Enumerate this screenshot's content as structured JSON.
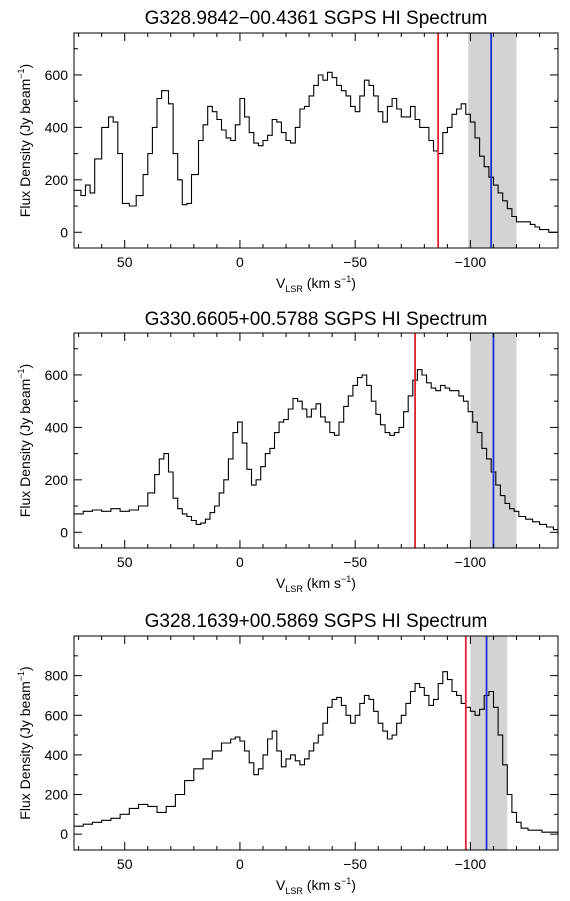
{
  "chart_data": [
    {
      "type": "line",
      "title": "G328.9842−00.4361 SGPS HI Spectrum",
      "xlabel": {
        "main": "V",
        "sub": "LSR",
        "units": " (km s",
        "exp": "−1",
        "close": ")"
      },
      "ylabel": {
        "main": "Flux Density (Jy beam",
        "exp": "−1",
        "close": ")"
      },
      "xlim": [
        72,
        -138
      ],
      "ylim": [
        -60,
        760
      ],
      "xticks": [
        50,
        0,
        -50,
        -100
      ],
      "xtick_labels": [
        "50",
        "0",
        "−50",
        "−100"
      ],
      "yticks": [
        0,
        200,
        400,
        600
      ],
      "ytick_labels": [
        "0",
        "200",
        "400",
        "600"
      ],
      "red_line_x": -86,
      "blue_line_x": -109,
      "shaded_range": [
        -99,
        -120
      ],
      "series": [
        {
          "x": [
            72,
            69,
            67,
            65,
            63,
            60,
            57,
            55,
            53,
            51,
            48,
            45,
            42,
            40,
            38,
            36,
            34,
            31,
            29,
            27,
            25,
            23,
            21,
            18,
            16,
            14,
            12,
            10,
            8,
            6,
            4,
            2,
            0,
            -2,
            -4,
            -6,
            -8,
            -10,
            -12,
            -14,
            -16,
            -18,
            -20,
            -22,
            -24,
            -26,
            -28,
            -30,
            -32,
            -34,
            -36,
            -38,
            -40,
            -42,
            -44,
            -46,
            -48,
            -50,
            -52,
            -54,
            -56,
            -58,
            -60,
            -62,
            -64,
            -66,
            -68,
            -70,
            -72,
            -74,
            -76,
            -78,
            -80,
            -82,
            -84,
            -86,
            -88,
            -90,
            -92,
            -94,
            -96,
            -98,
            -100,
            -102,
            -104,
            -106,
            -108,
            -110,
            -112,
            -114,
            -116,
            -118,
            -120,
            -122,
            -124,
            -126,
            -128,
            -130,
            -132,
            -134,
            -136,
            -138
          ],
          "y": [
            160,
            140,
            180,
            150,
            280,
            400,
            440,
            420,
            300,
            110,
            100,
            140,
            220,
            300,
            400,
            510,
            540,
            490,
            300,
            200,
            105,
            110,
            220,
            350,
            410,
            480,
            460,
            430,
            390,
            360,
            350,
            410,
            510,
            440,
            380,
            340,
            330,
            350,
            370,
            430,
            420,
            380,
            350,
            340,
            400,
            470,
            480,
            520,
            560,
            600,
            580,
            610,
            590,
            560,
            540,
            520,
            480,
            460,
            520,
            580,
            560,
            520,
            460,
            420,
            480,
            510,
            470,
            440,
            440,
            480,
            430,
            400,
            400,
            350,
            310,
            300,
            380,
            400,
            450,
            470,
            490,
            450,
            420,
            360,
            290,
            250,
            210,
            180,
            150,
            120,
            90,
            60,
            40,
            40,
            40,
            30,
            20,
            10,
            10,
            0,
            0,
            0
          ]
        }
      ]
    },
    {
      "type": "line",
      "title": "G330.6605+00.5788 SGPS HI Spectrum",
      "xlabel": {
        "main": "V",
        "sub": "LSR",
        "units": " (km s",
        "exp": "−1",
        "close": ")"
      },
      "ylabel": {
        "main": "Flux Density (Jy beam",
        "exp": "−1",
        "close": ")"
      },
      "xlim": [
        72,
        -138
      ],
      "ylim": [
        -60,
        760
      ],
      "xticks": [
        50,
        0,
        -50,
        -100
      ],
      "xtick_labels": [
        "50",
        "0",
        "−50",
        "−100"
      ],
      "yticks": [
        0,
        200,
        400,
        600
      ],
      "ytick_labels": [
        "0",
        "200",
        "400",
        "600"
      ],
      "red_line_x": -76,
      "blue_line_x": -110,
      "shaded_range": [
        -100,
        -120
      ],
      "series": [
        {
          "x": [
            72,
            68,
            64,
            60,
            56,
            52,
            48,
            44,
            40,
            37,
            35,
            33,
            31,
            29,
            27,
            25,
            23,
            21,
            19,
            17,
            15,
            13,
            11,
            9,
            7,
            5,
            3,
            1,
            -1,
            -3,
            -5,
            -7,
            -9,
            -11,
            -13,
            -15,
            -17,
            -19,
            -21,
            -23,
            -25,
            -27,
            -29,
            -31,
            -33,
            -35,
            -37,
            -39,
            -41,
            -43,
            -45,
            -47,
            -49,
            -51,
            -53,
            -55,
            -57,
            -59,
            -61,
            -63,
            -65,
            -67,
            -69,
            -71,
            -73,
            -75,
            -77,
            -79,
            -81,
            -83,
            -85,
            -87,
            -89,
            -91,
            -93,
            -95,
            -97,
            -99,
            -101,
            -103,
            -105,
            -107,
            -109,
            -111,
            -113,
            -115,
            -117,
            -119,
            -121,
            -124,
            -127,
            -130,
            -133,
            -136,
            -138
          ],
          "y": [
            70,
            80,
            85,
            80,
            90,
            80,
            85,
            100,
            150,
            220,
            280,
            300,
            230,
            130,
            90,
            70,
            60,
            45,
            30,
            35,
            50,
            75,
            100,
            150,
            200,
            280,
            380,
            420,
            340,
            240,
            180,
            200,
            250,
            300,
            320,
            380,
            420,
            430,
            470,
            510,
            500,
            470,
            440,
            470,
            490,
            440,
            420,
            380,
            370,
            420,
            480,
            520,
            560,
            590,
            600,
            560,
            500,
            450,
            410,
            380,
            370,
            380,
            400,
            460,
            520,
            580,
            620,
            600,
            570,
            550,
            540,
            560,
            550,
            540,
            540,
            520,
            500,
            460,
            420,
            380,
            320,
            280,
            230,
            180,
            140,
            110,
            90,
            80,
            60,
            50,
            40,
            30,
            20,
            10,
            0
          ]
        }
      ]
    },
    {
      "type": "line",
      "title": "G328.1639+00.5869 SGPS HI Spectrum",
      "xlabel": {
        "main": "V",
        "sub": "LSR",
        "units": " (km s",
        "exp": "−1",
        "close": ")"
      },
      "ylabel": {
        "main": "Flux Density (Jy beam",
        "exp": "−1",
        "close": ")"
      },
      "xlim": [
        72,
        -138
      ],
      "ylim": [
        -80,
        1000
      ],
      "xticks": [
        50,
        0,
        -50,
        -100
      ],
      "xtick_labels": [
        "50",
        "0",
        "−50",
        "−100"
      ],
      "yticks": [
        0,
        200,
        400,
        600,
        800
      ],
      "ytick_labels": [
        "0",
        "200",
        "400",
        "600",
        "800"
      ],
      "red_line_x": -98,
      "blue_line_x": -107,
      "shaded_range": [
        -100,
        -116
      ],
      "series": [
        {
          "x": [
            72,
            68,
            64,
            60,
            56,
            52,
            48,
            44,
            40,
            36,
            32,
            28,
            24,
            20,
            16,
            12,
            8,
            4,
            2,
            0,
            -2,
            -4,
            -6,
            -8,
            -10,
            -12,
            -14,
            -16,
            -18,
            -20,
            -22,
            -24,
            -26,
            -28,
            -30,
            -32,
            -34,
            -36,
            -38,
            -40,
            -42,
            -44,
            -46,
            -48,
            -50,
            -52,
            -54,
            -56,
            -58,
            -60,
            -62,
            -64,
            -66,
            -68,
            -70,
            -72,
            -74,
            -76,
            -78,
            -80,
            -82,
            -84,
            -86,
            -88,
            -90,
            -92,
            -94,
            -96,
            -98,
            -100,
            -102,
            -104,
            -106,
            -108,
            -110,
            -112,
            -114,
            -116,
            -118,
            -120,
            -122,
            -125,
            -128,
            -131,
            -134,
            -138
          ],
          "y": [
            40,
            50,
            60,
            70,
            80,
            100,
            130,
            150,
            140,
            110,
            140,
            200,
            270,
            330,
            380,
            420,
            460,
            480,
            490,
            470,
            420,
            360,
            300,
            330,
            400,
            480,
            520,
            420,
            340,
            380,
            400,
            370,
            350,
            380,
            420,
            460,
            500,
            560,
            640,
            680,
            690,
            650,
            600,
            560,
            600,
            660,
            700,
            680,
            620,
            560,
            520,
            480,
            500,
            560,
            600,
            660,
            720,
            760,
            740,
            700,
            650,
            680,
            760,
            820,
            780,
            720,
            700,
            660,
            640,
            620,
            600,
            630,
            700,
            720,
            640,
            500,
            350,
            200,
            110,
            60,
            30,
            20,
            20,
            10,
            10,
            0
          ]
        }
      ]
    }
  ]
}
